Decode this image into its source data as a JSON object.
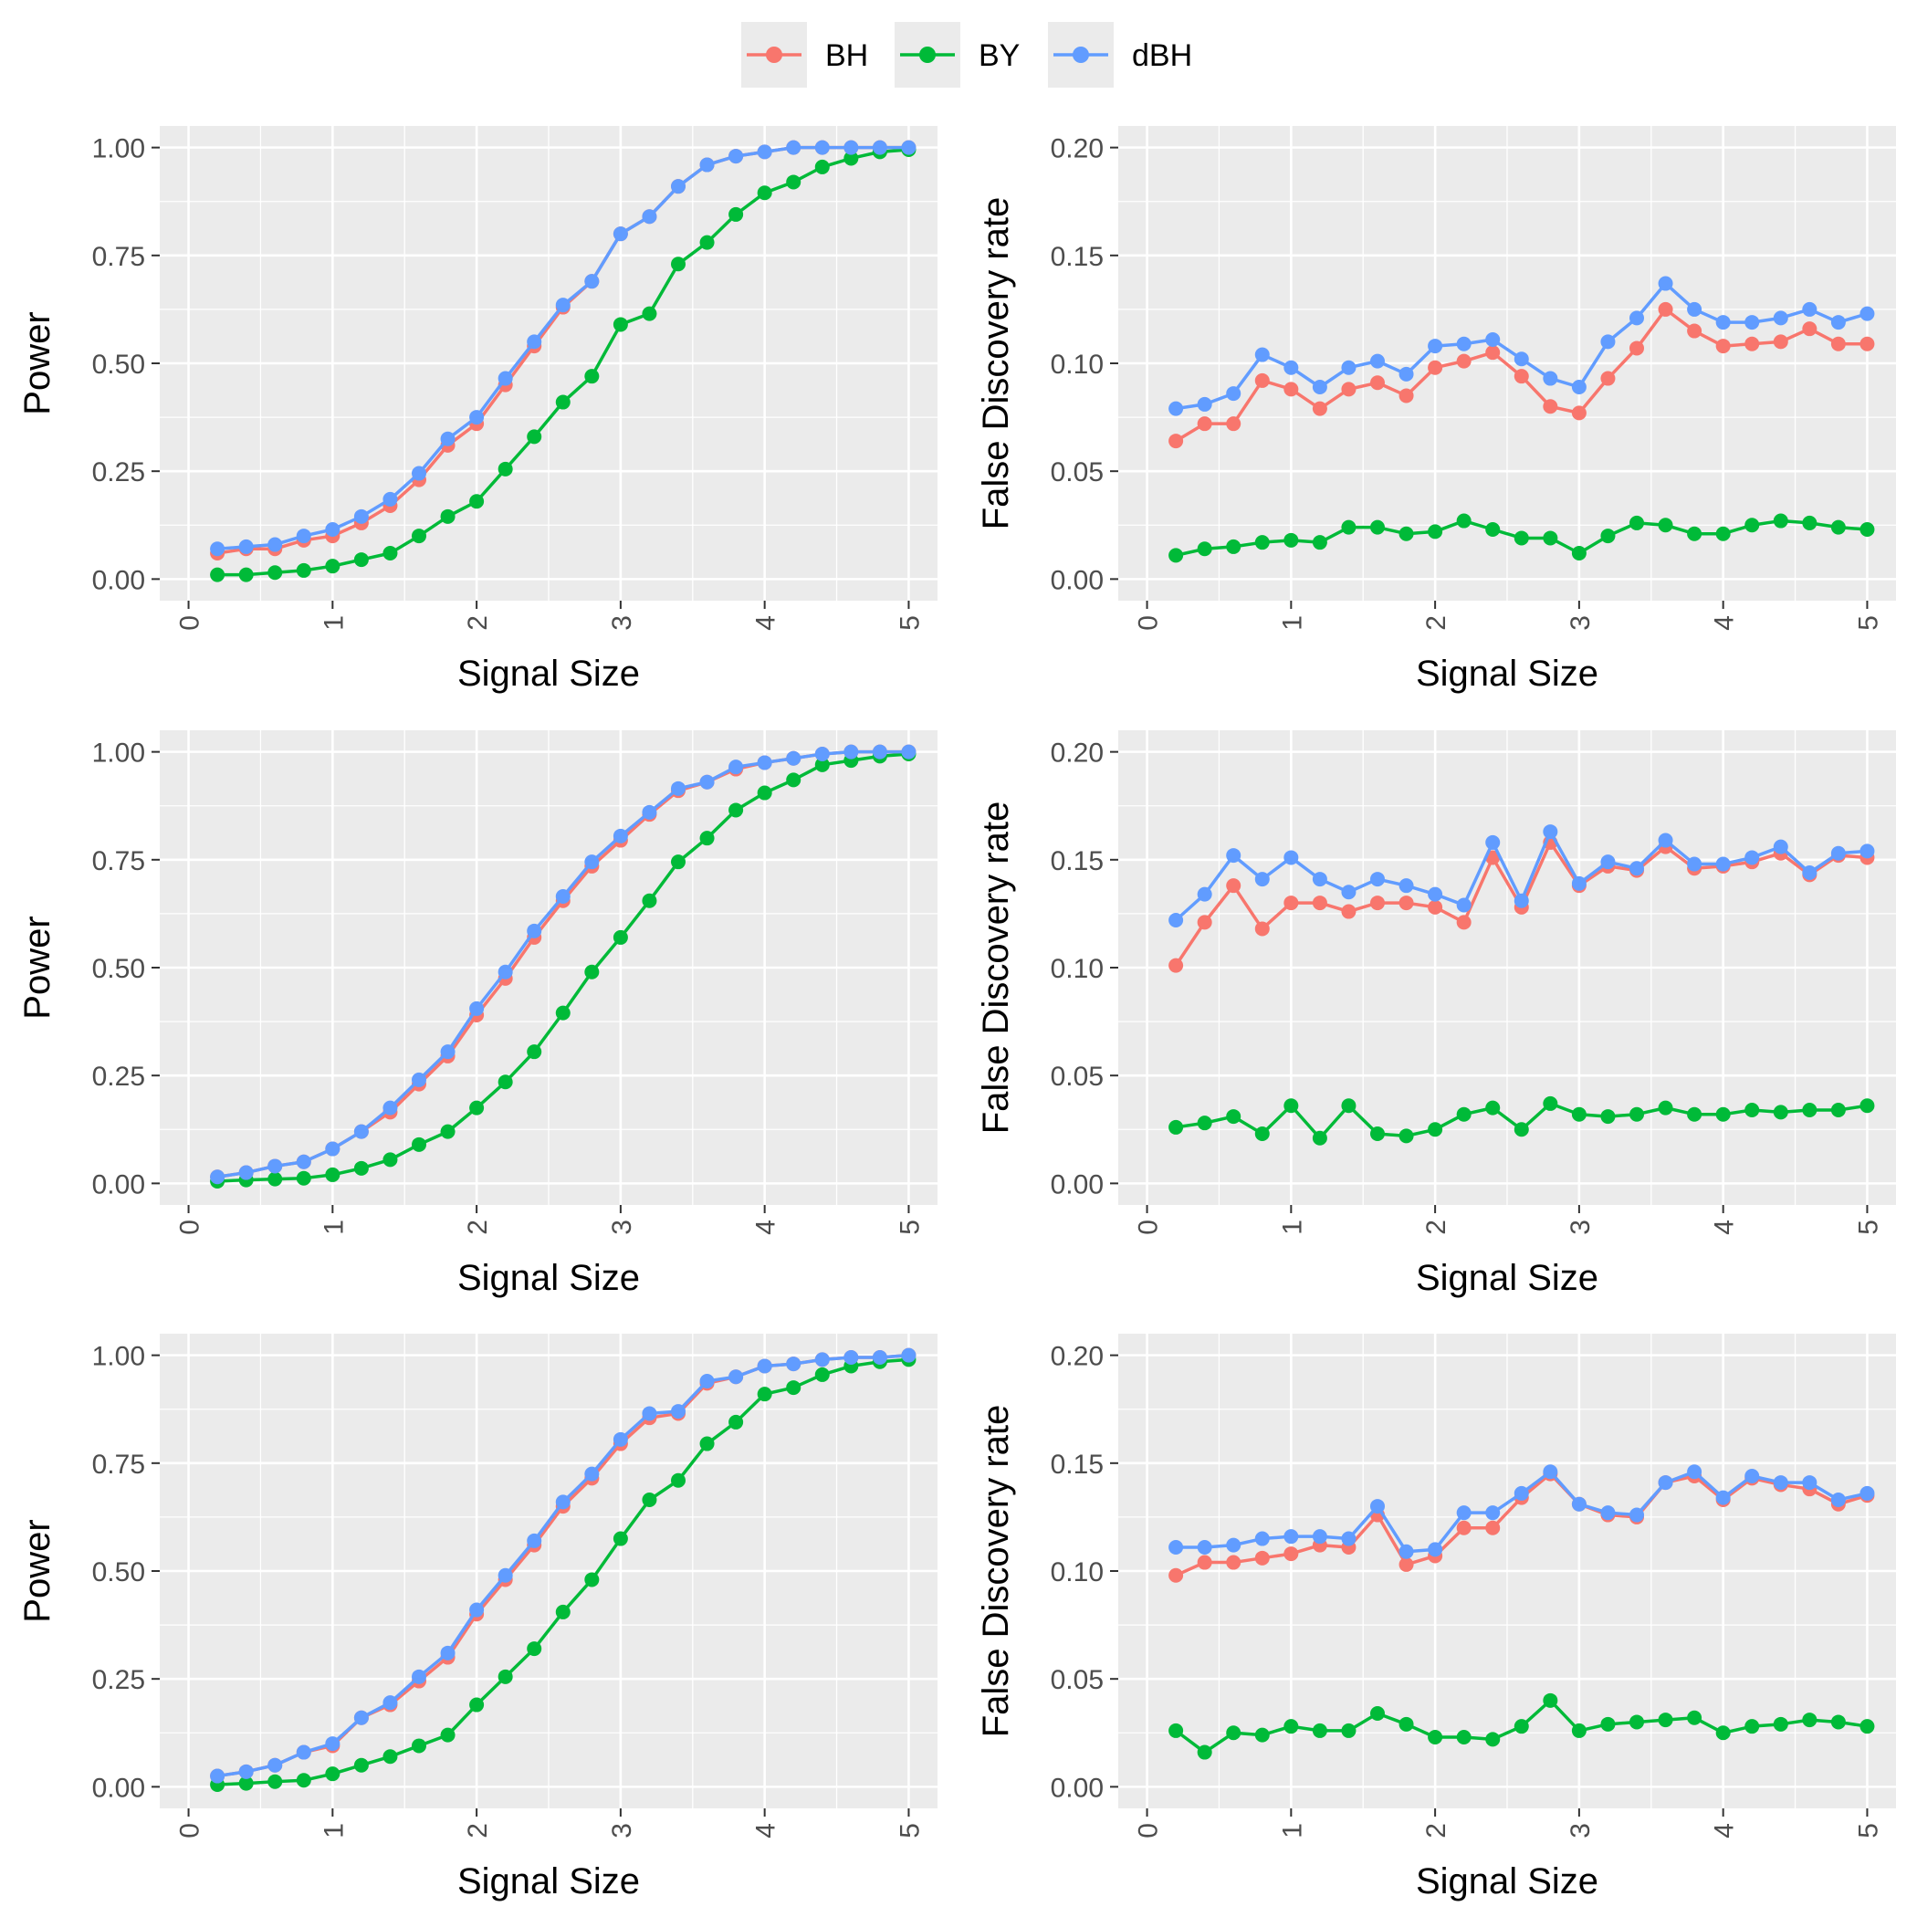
{
  "legend": {
    "items": [
      {
        "label": "BH",
        "color": "#F8766D"
      },
      {
        "label": "BY",
        "color": "#00BA38"
      },
      {
        "label": "dBH",
        "color": "#619CFF"
      }
    ]
  },
  "chart_data": [
    {
      "type": "line",
      "row": 1,
      "col": 1,
      "xlabel": "Signal Size",
      "ylabel": "Power",
      "xlim": [
        0,
        5
      ],
      "ylim": [
        0,
        1
      ],
      "xticks": [
        "0",
        "1",
        "2",
        "3",
        "4",
        "5"
      ],
      "yticks": [
        "0.00",
        "0.25",
        "0.50",
        "0.75",
        "1.00"
      ],
      "x": [
        0.2,
        0.4,
        0.6,
        0.8,
        1.0,
        1.2,
        1.4,
        1.6,
        1.8,
        2.0,
        2.2,
        2.4,
        2.6,
        2.8,
        3.0,
        3.2,
        3.4,
        3.6,
        3.8,
        4.0,
        4.2,
        4.4,
        4.6,
        4.8,
        5.0
      ],
      "series": [
        {
          "name": "BH",
          "values": [
            0.06,
            0.07,
            0.07,
            0.09,
            0.1,
            0.13,
            0.17,
            0.23,
            0.31,
            0.36,
            0.45,
            0.54,
            0.63,
            0.69,
            0.8,
            0.84,
            0.91,
            0.96,
            0.98,
            0.99,
            1.0,
            1.0,
            1.0,
            1.0,
            1.0
          ]
        },
        {
          "name": "BY",
          "values": [
            0.01,
            0.01,
            0.015,
            0.02,
            0.03,
            0.045,
            0.06,
            0.1,
            0.145,
            0.18,
            0.255,
            0.33,
            0.41,
            0.47,
            0.59,
            0.615,
            0.73,
            0.78,
            0.845,
            0.895,
            0.92,
            0.955,
            0.975,
            0.99,
            0.995
          ]
        },
        {
          "name": "dBH",
          "values": [
            0.07,
            0.075,
            0.08,
            0.1,
            0.115,
            0.145,
            0.185,
            0.245,
            0.325,
            0.375,
            0.465,
            0.55,
            0.635,
            0.69,
            0.8,
            0.84,
            0.91,
            0.96,
            0.98,
            0.99,
            1.0,
            1.0,
            1.0,
            1.0,
            1.0
          ]
        }
      ]
    },
    {
      "type": "line",
      "row": 1,
      "col": 2,
      "xlabel": "Signal Size",
      "ylabel": "False Discovery rate",
      "xlim": [
        0,
        5
      ],
      "ylim": [
        0,
        0.2
      ],
      "xticks": [
        "0",
        "1",
        "2",
        "3",
        "4",
        "5"
      ],
      "yticks": [
        "0.00",
        "0.05",
        "0.10",
        "0.15",
        "0.20"
      ],
      "x": [
        0.2,
        0.4,
        0.6,
        0.8,
        1.0,
        1.2,
        1.4,
        1.6,
        1.8,
        2.0,
        2.2,
        2.4,
        2.6,
        2.8,
        3.0,
        3.2,
        3.4,
        3.6,
        3.8,
        4.0,
        4.2,
        4.4,
        4.6,
        4.8,
        5.0
      ],
      "series": [
        {
          "name": "BH",
          "values": [
            0.064,
            0.072,
            0.072,
            0.092,
            0.088,
            0.079,
            0.088,
            0.091,
            0.085,
            0.098,
            0.101,
            0.105,
            0.094,
            0.08,
            0.077,
            0.093,
            0.107,
            0.125,
            0.115,
            0.108,
            0.109,
            0.11,
            0.116,
            0.109,
            0.109
          ]
        },
        {
          "name": "BY",
          "values": [
            0.011,
            0.014,
            0.015,
            0.017,
            0.018,
            0.017,
            0.024,
            0.024,
            0.021,
            0.022,
            0.027,
            0.023,
            0.019,
            0.019,
            0.012,
            0.02,
            0.026,
            0.025,
            0.021,
            0.021,
            0.025,
            0.027,
            0.026,
            0.024,
            0.023
          ]
        },
        {
          "name": "dBH",
          "values": [
            0.079,
            0.081,
            0.086,
            0.104,
            0.098,
            0.089,
            0.098,
            0.101,
            0.095,
            0.108,
            0.109,
            0.111,
            0.102,
            0.093,
            0.089,
            0.11,
            0.121,
            0.137,
            0.125,
            0.119,
            0.119,
            0.121,
            0.125,
            0.119,
            0.123
          ]
        }
      ]
    },
    {
      "type": "line",
      "row": 2,
      "col": 1,
      "xlabel": "Signal Size",
      "ylabel": "Power",
      "xlim": [
        0,
        5
      ],
      "ylim": [
        0,
        1
      ],
      "xticks": [
        "0",
        "1",
        "2",
        "3",
        "4",
        "5"
      ],
      "yticks": [
        "0.00",
        "0.25",
        "0.50",
        "0.75",
        "1.00"
      ],
      "x": [
        0.2,
        0.4,
        0.6,
        0.8,
        1.0,
        1.2,
        1.4,
        1.6,
        1.8,
        2.0,
        2.2,
        2.4,
        2.6,
        2.8,
        3.0,
        3.2,
        3.4,
        3.6,
        3.8,
        4.0,
        4.2,
        4.4,
        4.6,
        4.8,
        5.0
      ],
      "series": [
        {
          "name": "BH",
          "values": [
            0.015,
            0.025,
            0.04,
            0.05,
            0.08,
            0.12,
            0.165,
            0.23,
            0.295,
            0.39,
            0.475,
            0.57,
            0.655,
            0.735,
            0.795,
            0.855,
            0.91,
            0.93,
            0.96,
            0.975,
            0.985,
            0.995,
            1.0,
            1.0,
            1.0
          ]
        },
        {
          "name": "BY",
          "values": [
            0.005,
            0.008,
            0.01,
            0.012,
            0.02,
            0.035,
            0.055,
            0.09,
            0.12,
            0.175,
            0.235,
            0.305,
            0.395,
            0.49,
            0.57,
            0.655,
            0.745,
            0.8,
            0.865,
            0.905,
            0.935,
            0.97,
            0.98,
            0.99,
            0.995
          ]
        },
        {
          "name": "dBH",
          "values": [
            0.015,
            0.025,
            0.04,
            0.05,
            0.08,
            0.12,
            0.175,
            0.24,
            0.305,
            0.405,
            0.49,
            0.585,
            0.665,
            0.745,
            0.805,
            0.86,
            0.915,
            0.93,
            0.965,
            0.975,
            0.985,
            0.995,
            1.0,
            1.0,
            1.0
          ]
        }
      ]
    },
    {
      "type": "line",
      "row": 2,
      "col": 2,
      "xlabel": "Signal Size",
      "ylabel": "False Discovery rate",
      "xlim": [
        0,
        5
      ],
      "ylim": [
        0,
        0.2
      ],
      "xticks": [
        "0",
        "1",
        "2",
        "3",
        "4",
        "5"
      ],
      "yticks": [
        "0.00",
        "0.05",
        "0.10",
        "0.15",
        "0.20"
      ],
      "x": [
        0.2,
        0.4,
        0.6,
        0.8,
        1.0,
        1.2,
        1.4,
        1.6,
        1.8,
        2.0,
        2.2,
        2.4,
        2.6,
        2.8,
        3.0,
        3.2,
        3.4,
        3.6,
        3.8,
        4.0,
        4.2,
        4.4,
        4.6,
        4.8,
        5.0
      ],
      "series": [
        {
          "name": "BH",
          "values": [
            0.101,
            0.121,
            0.138,
            0.118,
            0.13,
            0.13,
            0.126,
            0.13,
            0.13,
            0.128,
            0.121,
            0.151,
            0.128,
            0.158,
            0.138,
            0.147,
            0.145,
            0.156,
            0.146,
            0.147,
            0.149,
            0.153,
            0.143,
            0.152,
            0.151
          ]
        },
        {
          "name": "BY",
          "values": [
            0.026,
            0.028,
            0.031,
            0.023,
            0.036,
            0.021,
            0.036,
            0.023,
            0.022,
            0.025,
            0.032,
            0.035,
            0.025,
            0.037,
            0.032,
            0.031,
            0.032,
            0.035,
            0.032,
            0.032,
            0.034,
            0.033,
            0.034,
            0.034,
            0.036
          ]
        },
        {
          "name": "dBH",
          "values": [
            0.122,
            0.134,
            0.152,
            0.141,
            0.151,
            0.141,
            0.135,
            0.141,
            0.138,
            0.134,
            0.129,
            0.158,
            0.131,
            0.163,
            0.139,
            0.149,
            0.146,
            0.159,
            0.148,
            0.148,
            0.151,
            0.156,
            0.144,
            0.153,
            0.154
          ]
        }
      ]
    },
    {
      "type": "line",
      "row": 3,
      "col": 1,
      "xlabel": "Signal Size",
      "ylabel": "Power",
      "xlim": [
        0,
        5
      ],
      "ylim": [
        0,
        1
      ],
      "xticks": [
        "0",
        "1",
        "2",
        "3",
        "4",
        "5"
      ],
      "yticks": [
        "0.00",
        "0.25",
        "0.50",
        "0.75",
        "1.00"
      ],
      "x": [
        0.2,
        0.4,
        0.6,
        0.8,
        1.0,
        1.2,
        1.4,
        1.6,
        1.8,
        2.0,
        2.2,
        2.4,
        2.6,
        2.8,
        3.0,
        3.2,
        3.4,
        3.6,
        3.8,
        4.0,
        4.2,
        4.4,
        4.6,
        4.8,
        5.0
      ],
      "series": [
        {
          "name": "BH",
          "values": [
            0.025,
            0.035,
            0.05,
            0.08,
            0.095,
            0.16,
            0.19,
            0.245,
            0.3,
            0.4,
            0.48,
            0.56,
            0.65,
            0.715,
            0.795,
            0.855,
            0.865,
            0.935,
            0.95,
            0.975,
            0.98,
            0.99,
            0.995,
            0.995,
            1.0
          ]
        },
        {
          "name": "BY",
          "values": [
            0.005,
            0.008,
            0.012,
            0.015,
            0.03,
            0.05,
            0.07,
            0.095,
            0.12,
            0.19,
            0.255,
            0.32,
            0.405,
            0.48,
            0.575,
            0.665,
            0.71,
            0.795,
            0.845,
            0.91,
            0.925,
            0.955,
            0.975,
            0.985,
            0.99
          ]
        },
        {
          "name": "dBH",
          "values": [
            0.025,
            0.035,
            0.05,
            0.08,
            0.1,
            0.16,
            0.195,
            0.255,
            0.31,
            0.41,
            0.49,
            0.57,
            0.66,
            0.725,
            0.805,
            0.865,
            0.87,
            0.94,
            0.95,
            0.975,
            0.98,
            0.99,
            0.995,
            0.995,
            1.0
          ]
        }
      ]
    },
    {
      "type": "line",
      "row": 3,
      "col": 2,
      "xlabel": "Signal Size",
      "ylabel": "False Discovery rate",
      "xlim": [
        0,
        5
      ],
      "ylim": [
        0,
        0.2
      ],
      "xticks": [
        "0",
        "1",
        "2",
        "3",
        "4",
        "5"
      ],
      "yticks": [
        "0.00",
        "0.05",
        "0.10",
        "0.15",
        "0.20"
      ],
      "x": [
        0.2,
        0.4,
        0.6,
        0.8,
        1.0,
        1.2,
        1.4,
        1.6,
        1.8,
        2.0,
        2.2,
        2.4,
        2.6,
        2.8,
        3.0,
        3.2,
        3.4,
        3.6,
        3.8,
        4.0,
        4.2,
        4.4,
        4.6,
        4.8,
        5.0
      ],
      "series": [
        {
          "name": "BH",
          "values": [
            0.098,
            0.104,
            0.104,
            0.106,
            0.108,
            0.112,
            0.111,
            0.126,
            0.103,
            0.107,
            0.12,
            0.12,
            0.134,
            0.145,
            0.131,
            0.126,
            0.125,
            0.141,
            0.144,
            0.133,
            0.143,
            0.14,
            0.138,
            0.131,
            0.135
          ]
        },
        {
          "name": "BY",
          "values": [
            0.026,
            0.016,
            0.025,
            0.024,
            0.028,
            0.026,
            0.026,
            0.034,
            0.029,
            0.023,
            0.023,
            0.022,
            0.028,
            0.04,
            0.026,
            0.029,
            0.03,
            0.031,
            0.032,
            0.025,
            0.028,
            0.029,
            0.031,
            0.03,
            0.028
          ]
        },
        {
          "name": "dBH",
          "values": [
            0.111,
            0.111,
            0.112,
            0.115,
            0.116,
            0.116,
            0.115,
            0.13,
            0.109,
            0.11,
            0.127,
            0.127,
            0.136,
            0.146,
            0.131,
            0.127,
            0.126,
            0.141,
            0.146,
            0.134,
            0.144,
            0.141,
            0.141,
            0.133,
            0.136
          ]
        }
      ]
    }
  ]
}
